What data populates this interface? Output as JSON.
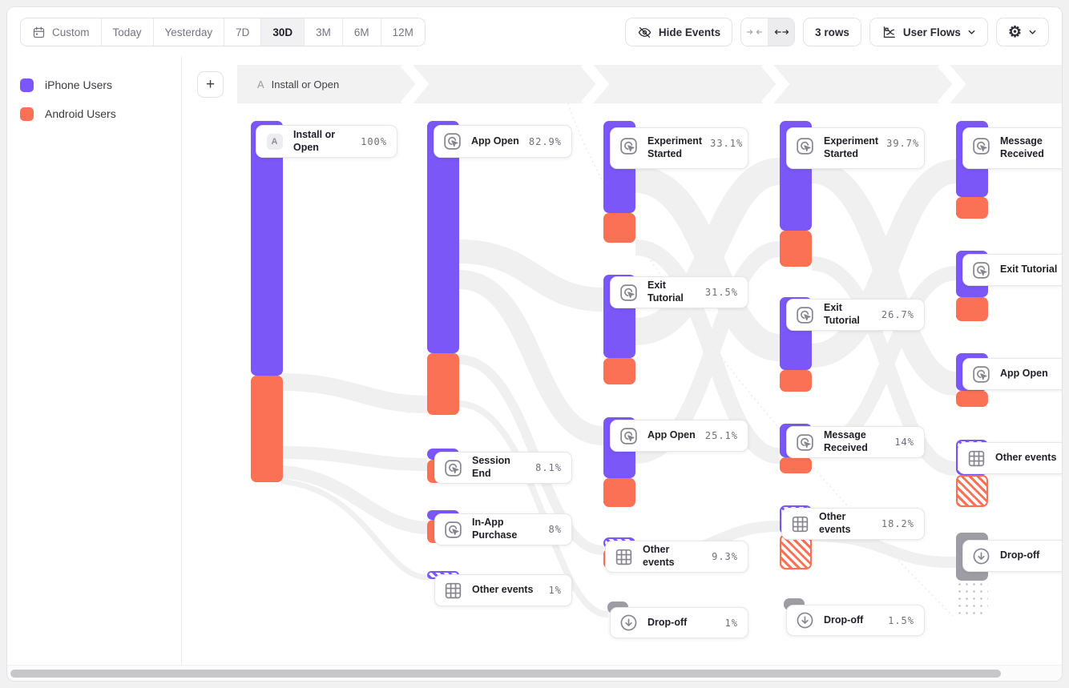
{
  "toolbar": {
    "date_ranges": {
      "items": [
        "Custom",
        "Today",
        "Yesterday",
        "7D",
        "30D",
        "3M",
        "6M",
        "12M"
      ],
      "selected": "30D"
    },
    "hide_events_label": "Hide Events",
    "rows_label": "3 rows",
    "view_selector_label": "User Flows"
  },
  "legend": {
    "items": [
      {
        "label": "iPhone Users",
        "color": "#7a57f6"
      },
      {
        "label": "Android Users",
        "color": "#fa7155"
      }
    ]
  },
  "header": {
    "add_button": "+",
    "step_badge": "A",
    "step_label": "Install or Open"
  },
  "flow": {
    "columns": [
      {
        "nodes": [
          {
            "label": "Install or Open",
            "pct": "100%",
            "kind": "event",
            "badge": "A"
          }
        ]
      },
      {
        "nodes": [
          {
            "label": "App Open",
            "pct": "82.9%",
            "kind": "event"
          },
          {
            "label": "Session End",
            "pct": "8.1%",
            "kind": "event"
          },
          {
            "label": "In-App Purchase",
            "pct": "8%",
            "kind": "event"
          },
          {
            "label": "Other events",
            "pct": "1%",
            "kind": "other"
          }
        ]
      },
      {
        "nodes": [
          {
            "label": "Experiment Started",
            "pct": "33.1%",
            "kind": "event"
          },
          {
            "label": "Exit Tutorial",
            "pct": "31.5%",
            "kind": "event"
          },
          {
            "label": "App Open",
            "pct": "25.1%",
            "kind": "event"
          },
          {
            "label": "Other events",
            "pct": "9.3%",
            "kind": "other"
          },
          {
            "label": "Drop-off",
            "pct": "1%",
            "kind": "dropoff"
          }
        ]
      },
      {
        "nodes": [
          {
            "label": "Experiment Started",
            "pct": "39.7%",
            "kind": "event"
          },
          {
            "label": "Exit Tutorial",
            "pct": "26.7%",
            "kind": "event"
          },
          {
            "label": "Message Received",
            "pct": "14%",
            "kind": "event"
          },
          {
            "label": "Other events",
            "pct": "18.2%",
            "kind": "other"
          },
          {
            "label": "Drop-off",
            "pct": "1.5%",
            "kind": "dropoff"
          }
        ]
      },
      {
        "nodes": [
          {
            "label": "Message Received",
            "pct": "",
            "kind": "event"
          },
          {
            "label": "Exit Tutorial",
            "pct": "",
            "kind": "event"
          },
          {
            "label": "App Open",
            "pct": "",
            "kind": "event"
          },
          {
            "label": "Other events",
            "pct": "",
            "kind": "other"
          },
          {
            "label": "Drop-off",
            "pct": "",
            "kind": "dropoff"
          }
        ]
      }
    ]
  },
  "icons": {
    "calendar-icon": "date range picker",
    "eye-off-icon": "hide events",
    "collapse-icon": "arrows inward",
    "expand-icon": "arrows outward",
    "flows-chart-icon": "user flows view",
    "gear-icon": "settings",
    "chevron-down-icon": "open menu",
    "click-event-icon": "event node",
    "grid-icon": "other events",
    "arrow-down-circle-icon": "drop-off"
  },
  "colors": {
    "purple": "#7a57f6",
    "orange": "#fa7155",
    "dropoff_gray": "#9d9da3",
    "band_gray": "#f2f2f3",
    "ribbon_gray": "#f0f0f1"
  }
}
